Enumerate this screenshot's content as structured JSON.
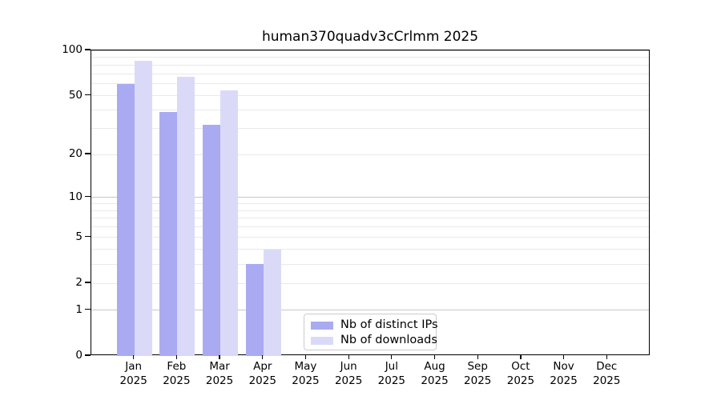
{
  "title": "human370quadv3cCrlmm 2025",
  "legend": {
    "items": [
      {
        "label": "Nb of distinct IPs",
        "color": "#aaaaf2"
      },
      {
        "label": "Nb of downloads",
        "color": "#dadaf8"
      }
    ]
  },
  "chart_data": {
    "type": "bar",
    "title": "human370quadv3cCrlmm 2025",
    "categories": [
      "Jan 2025",
      "Feb 2025",
      "Mar 2025",
      "Apr 2025",
      "May 2025",
      "Jun 2025",
      "Jul 2025",
      "Aug 2025",
      "Sep 2025",
      "Oct 2025",
      "Nov 2025",
      "Dec 2025"
    ],
    "x_tick_months": [
      "Jan",
      "Feb",
      "Mar",
      "Apr",
      "May",
      "Jun",
      "Jul",
      "Aug",
      "Sep",
      "Oct",
      "Nov",
      "Dec"
    ],
    "x_tick_year": "2025",
    "series": [
      {
        "name": "Nb of distinct IPs",
        "color": "#aaaaf2",
        "values": [
          60,
          39,
          32,
          3,
          0,
          0,
          0,
          0,
          0,
          0,
          0,
          0
        ]
      },
      {
        "name": "Nb of downloads",
        "color": "#dadaf8",
        "values": [
          85,
          67,
          54,
          4,
          0,
          0,
          0,
          0,
          0,
          0,
          0,
          0
        ]
      }
    ],
    "xlabel": "",
    "ylabel": "",
    "ylim": [
      0,
      100
    ],
    "yscale": "log10(value+1)",
    "ytick_labels": [
      0,
      1,
      2,
      5,
      10,
      20,
      50,
      100
    ],
    "gridlines_major": [
      1,
      10,
      100
    ],
    "gridlines_minor": [
      2,
      3,
      4,
      5,
      6,
      7,
      8,
      9,
      20,
      30,
      40,
      50,
      60,
      70,
      80,
      90
    ],
    "grid": true,
    "legend_position": "lower center"
  }
}
